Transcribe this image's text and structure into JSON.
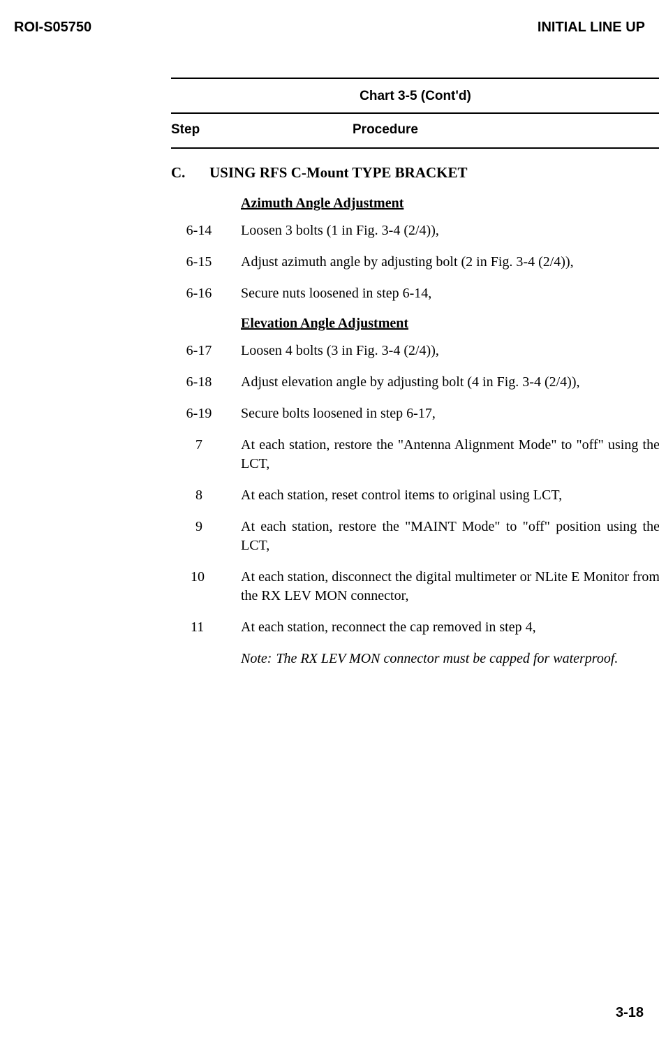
{
  "header": {
    "doc_id": "ROI-S05750",
    "title": "INITIAL LINE UP"
  },
  "chart": {
    "label": "Chart 3-5 (Cont'd)",
    "col_step": "Step",
    "col_proc": "Procedure"
  },
  "section": {
    "letter": "C.",
    "title": "USING RFS C-Mount TYPE BRACKET"
  },
  "subheads": {
    "azimuth": "Azimuth Angle Adjustment",
    "elevation": "Elevation Angle Adjustment"
  },
  "steps": {
    "s614": {
      "num": "6-14",
      "text": "Loosen 3 bolts (1 in Fig. 3-4 (2/4)),"
    },
    "s615": {
      "num": "6-15",
      "text": "Adjust azimuth angle by adjusting bolt (2 in Fig. 3-4 (2/4)),"
    },
    "s616": {
      "num": "6-16",
      "text": "Secure nuts loosened in step 6-14,"
    },
    "s617": {
      "num": "6-17",
      "text": "Loosen 4 bolts (3 in Fig. 3-4 (2/4)),"
    },
    "s618": {
      "num": "6-18",
      "text": "Adjust elevation angle by adjusting bolt (4 in Fig. 3-4 (2/4)),"
    },
    "s619": {
      "num": "6-19",
      "text": "Secure bolts loosened in step 6-17,"
    },
    "s7": {
      "num": "7",
      "text": "At each station, restore the \"Antenna Alignment Mode\" to \"off\" using the LCT,"
    },
    "s8": {
      "num": "8",
      "text": "At each station, reset control items to original using LCT,"
    },
    "s9": {
      "num": "9",
      "text": "At each station, restore the \"MAINT Mode\" to \"off\" position using the LCT,"
    },
    "s10": {
      "num": "10",
      "text": "At each station, disconnect the digital multimeter or NLite E Monitor from the RX LEV MON connector,"
    },
    "s11": {
      "num": "11",
      "text": "At each station, reconnect the cap removed in step 4,"
    }
  },
  "note": {
    "label": "Note:",
    "text": "The RX LEV MON connector must be capped for waterproof."
  },
  "page_num": "3-18"
}
